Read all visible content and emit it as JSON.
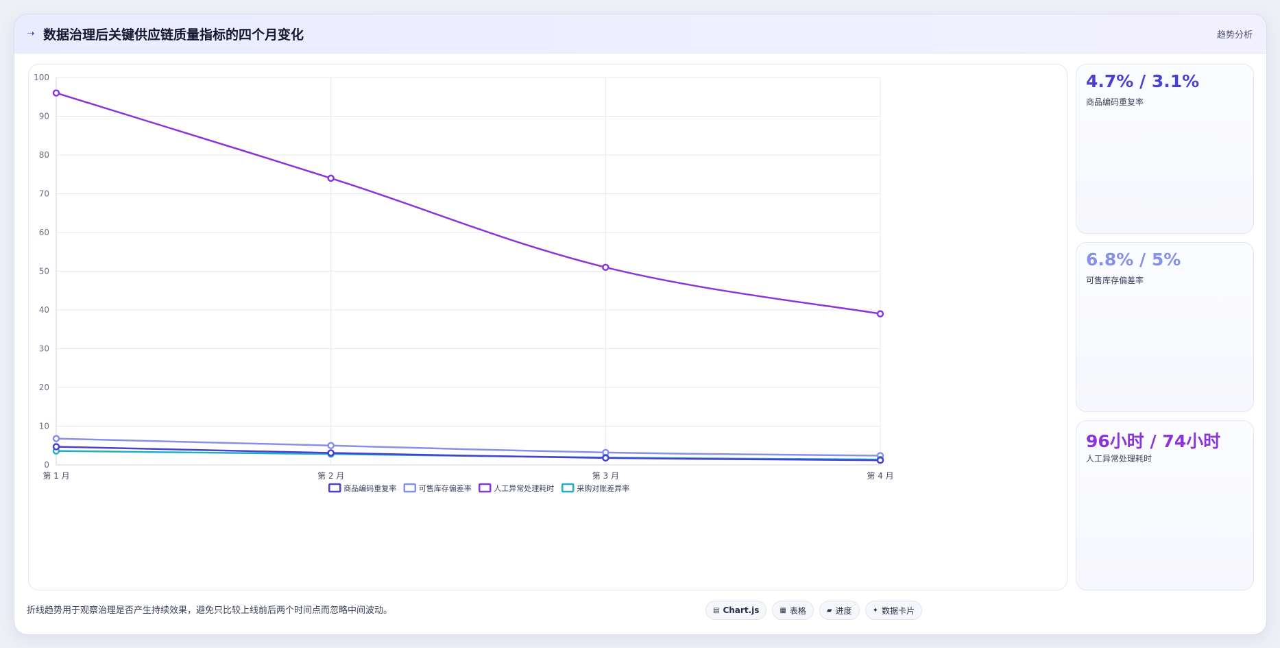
{
  "header": {
    "title": "数据治理后关键供应链质量指标的四个月变化",
    "tag": "趋势分析",
    "icon": "sparkle-icon"
  },
  "chart_data": {
    "type": "line",
    "categories": [
      "第 1 月",
      "第 2 月",
      "第 3 月",
      "第 4 月"
    ],
    "ylim": [
      0,
      100
    ],
    "yticks": [
      0,
      10,
      20,
      30,
      40,
      50,
      60,
      70,
      80,
      90,
      100
    ],
    "grid": true,
    "legend_position": "bottom",
    "series": [
      {
        "name": "商品编码重复率",
        "values": [
          4.7,
          3.1,
          1.8,
          1.2
        ],
        "color": "#4a40cf"
      },
      {
        "name": "可售库存偏差率",
        "values": [
          6.8,
          5.0,
          3.2,
          2.4
        ],
        "color": "#8690e6"
      },
      {
        "name": "人工异常处理耗时",
        "values": [
          96,
          74,
          51,
          39
        ],
        "color": "#8b35d6"
      },
      {
        "name": "采购对账差异率",
        "values": [
          3.6,
          2.8,
          1.9,
          1.4
        ],
        "color": "#1fb0c8"
      }
    ]
  },
  "side_cards": [
    {
      "value": "4.7% / 3.1%",
      "label": "商品编码重复率",
      "color": "#4a40cf"
    },
    {
      "value": "6.8% / 5%",
      "label": "可售库存偏差率",
      "color": "#8690e6"
    },
    {
      "value": "96小时 / 74小时",
      "label": "人工异常处理耗时",
      "color": "#8b35d6"
    }
  ],
  "footer": {
    "note": "折线趋势用于观察治理是否产生持续效果，避免只比较上线前后两个时间点而忽略中间波动。",
    "chips": [
      {
        "icon": "▤",
        "label": "Chart.js"
      },
      {
        "icon": "▦",
        "label": "表格"
      },
      {
        "icon": "▰",
        "label": "进度"
      },
      {
        "icon": "✦",
        "label": "数据卡片"
      }
    ]
  }
}
